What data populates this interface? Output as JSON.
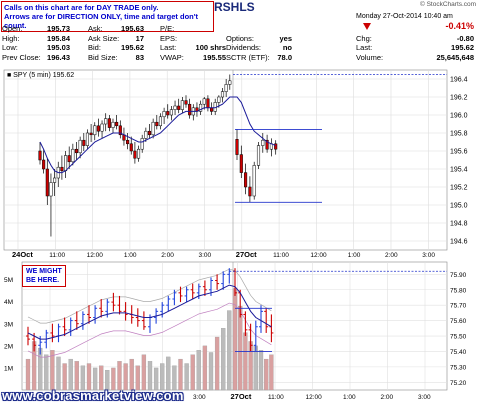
{
  "notes": {
    "line1": "Calls on this chart are for DAY TRADE only.",
    "line2": "Arrows are for DIRECTION ONLY, time and target don't count."
  },
  "header": {
    "symbol": "RSHLS",
    "date": "Monday 27-Oct-2014 10:40 am",
    "logo": "© StockCharts.com",
    "change_pct": "-0.41%",
    "rows": [
      {
        "label": "Open:",
        "value": "195.73",
        "label2": "Ask:",
        "value2": "195.63",
        "label3": "P/E:",
        "value3": ""
      },
      {
        "label": "High:",
        "value": "195.84",
        "label2": "Ask Size:",
        "value2": "17",
        "label3": "EPS:",
        "value3": ""
      },
      {
        "label": "Low:",
        "value": "195.03",
        "label2": "Bid:",
        "value2": "195.62",
        "label3": "Last:",
        "value3": "100 shrs"
      },
      {
        "label": "Prev Close:",
        "value": "196.43",
        "label2": "Bid Size:",
        "value2": "83",
        "label3": "VWAP:",
        "value3": "195.55"
      }
    ],
    "mid_rows": [
      {
        "label": "Options:",
        "value": "yes"
      },
      {
        "label": "Dividends:",
        "value": "no"
      },
      {
        "label": "SCTR (ETF):",
        "value": "78.0"
      }
    ],
    "right_rows": [
      {
        "label": "Chg:",
        "value": "-0.80"
      },
      {
        "label": "Last:",
        "value": "195.62"
      },
      {
        "label": "Volume:",
        "value": "25,645,648"
      }
    ]
  },
  "legend": "SPY (5 min) 195.62",
  "annotation": {
    "line1": "WE MIGHT",
    "line2": "BE HERE."
  },
  "watermark": "www.cobrasmarketview.com",
  "colors": {
    "up": "#008800",
    "down": "#cc0000",
    "ma": "#1a1a99",
    "guide": "#2233cc",
    "wave": "#2244dd"
  },
  "chart_data": [
    {
      "type": "candlestick",
      "title": "SPY (5 min) 195.62",
      "y_ticks": [
        194.6,
        194.8,
        195.0,
        195.2,
        195.4,
        195.6,
        195.8,
        196.0,
        196.2,
        196.4
      ],
      "ylim": [
        194.5,
        196.5
      ],
      "x_ticks": [
        "24Oct",
        "11:00",
        "12:00",
        "1:00",
        "2:00",
        "3:00",
        "27Oct",
        "11:00",
        "12:00",
        "1:00",
        "2:00",
        "3:00"
      ],
      "ohlc": [
        [
          195.6,
          195.7,
          195.45,
          195.5
        ],
        [
          195.5,
          195.62,
          195.35,
          195.4
        ],
        [
          195.4,
          195.52,
          195.0,
          195.1
        ],
        [
          195.1,
          195.35,
          194.65,
          195.25
        ],
        [
          195.25,
          195.4,
          195.1,
          195.3
        ],
        [
          195.3,
          195.48,
          195.2,
          195.42
        ],
        [
          195.42,
          195.55,
          195.28,
          195.38
        ],
        [
          195.38,
          195.6,
          195.3,
          195.55
        ],
        [
          195.55,
          195.65,
          195.4,
          195.48
        ],
        [
          195.48,
          195.68,
          195.44,
          195.62
        ],
        [
          195.62,
          195.7,
          195.5,
          195.58
        ],
        [
          195.58,
          195.76,
          195.52,
          195.72
        ],
        [
          195.72,
          195.8,
          195.6,
          195.66
        ],
        [
          195.66,
          195.84,
          195.62,
          195.8
        ],
        [
          195.8,
          195.9,
          195.7,
          195.78
        ],
        [
          195.78,
          195.92,
          195.72,
          195.88
        ],
        [
          195.88,
          195.96,
          195.76,
          195.82
        ],
        [
          195.82,
          195.94,
          195.74,
          195.9
        ],
        [
          195.9,
          196.02,
          195.82,
          195.96
        ],
        [
          195.96,
          196.0,
          195.82,
          195.86
        ],
        [
          195.86,
          195.96,
          195.8,
          195.92
        ],
        [
          195.92,
          196.0,
          195.84,
          195.88
        ],
        [
          195.88,
          195.94,
          195.74,
          195.78
        ],
        [
          195.78,
          195.86,
          195.66,
          195.72
        ],
        [
          195.72,
          195.8,
          195.62,
          195.68
        ],
        [
          195.68,
          195.76,
          195.56,
          195.6
        ],
        [
          195.6,
          195.7,
          195.46,
          195.52
        ],
        [
          195.52,
          195.66,
          195.48,
          195.62
        ],
        [
          195.62,
          195.78,
          195.58,
          195.74
        ],
        [
          195.74,
          195.86,
          195.7,
          195.82
        ],
        [
          195.82,
          195.9,
          195.74,
          195.78
        ],
        [
          195.78,
          195.96,
          195.74,
          195.92
        ],
        [
          195.92,
          196.0,
          195.84,
          195.88
        ],
        [
          195.88,
          196.02,
          195.84,
          195.98
        ],
        [
          195.98,
          196.08,
          195.9,
          196.04
        ],
        [
          196.04,
          196.12,
          195.96,
          196.0
        ],
        [
          196.0,
          196.1,
          195.94,
          196.06
        ],
        [
          196.06,
          196.16,
          196.0,
          196.1
        ],
        [
          196.1,
          196.18,
          196.02,
          196.06
        ],
        [
          196.06,
          196.2,
          196.02,
          196.16
        ],
        [
          196.16,
          196.22,
          196.08,
          196.12
        ],
        [
          196.12,
          196.18,
          195.96,
          196.0
        ],
        [
          196.0,
          196.12,
          195.94,
          196.08
        ],
        [
          196.08,
          196.14,
          195.98,
          196.04
        ],
        [
          196.04,
          196.16,
          196.0,
          196.12
        ],
        [
          196.12,
          196.2,
          196.06,
          196.18
        ],
        [
          196.18,
          196.22,
          196.04,
          196.08
        ],
        [
          196.08,
          196.14,
          196.0,
          196.04
        ],
        [
          196.04,
          196.18,
          196.0,
          196.14
        ],
        [
          196.14,
          196.22,
          196.08,
          196.2
        ],
        [
          196.2,
          196.3,
          196.14,
          196.26
        ],
        [
          196.26,
          196.4,
          196.2,
          196.34
        ],
        [
          196.34,
          196.45,
          196.28,
          196.38
        ],
        [
          195.73,
          195.84,
          195.5,
          195.56
        ],
        [
          195.56,
          195.66,
          195.3,
          195.36
        ],
        [
          195.36,
          195.46,
          195.12,
          195.2
        ],
        [
          195.2,
          195.32,
          195.03,
          195.1
        ],
        [
          195.1,
          195.48,
          195.06,
          195.44
        ],
        [
          195.44,
          195.7,
          195.4,
          195.66
        ],
        [
          195.66,
          195.8,
          195.58,
          195.72
        ],
        [
          195.72,
          195.78,
          195.58,
          195.62
        ],
        [
          195.62,
          195.74,
          195.54,
          195.68
        ],
        [
          195.68,
          195.72,
          195.56,
          195.62
        ]
      ],
      "ma": [
        195.7,
        195.62,
        195.52,
        195.44,
        195.38,
        195.36,
        195.36,
        195.38,
        195.42,
        195.46,
        195.5,
        195.54,
        195.58,
        195.62,
        195.66,
        195.7,
        195.72,
        195.74,
        195.76,
        195.78,
        195.8,
        195.8,
        195.8,
        195.78,
        195.76,
        195.74,
        195.72,
        195.7,
        195.7,
        195.72,
        195.74,
        195.76,
        195.78,
        195.8,
        195.84,
        195.88,
        195.92,
        195.96,
        196.0,
        196.02,
        196.04,
        196.04,
        196.04,
        196.04,
        196.06,
        196.08,
        196.08,
        196.08,
        196.08,
        196.1,
        196.12,
        196.16,
        196.2,
        196.2,
        196.14,
        196.02,
        195.9,
        195.82,
        195.78,
        195.74,
        195.7,
        195.68,
        195.66
      ],
      "guides": [
        196.45,
        195.84,
        195.03
      ]
    },
    {
      "type": "candlestick",
      "title": "",
      "y_ticks": [
        75.2,
        75.3,
        75.4,
        75.5,
        75.6,
        75.7,
        75.8,
        75.9
      ],
      "ylim": [
        75.15,
        75.98
      ],
      "volume_ticks": [
        "1M",
        "2M",
        "3M",
        "4M",
        "5M"
      ],
      "volume_max": 5.8,
      "x_ticks": [
        "11:00",
        "12:00",
        "1:00",
        "2:00",
        "3:00",
        "27Oct",
        "11:00",
        "12:00",
        "1:00",
        "2:00",
        "3:00"
      ],
      "ohlc": [
        [
          75.5,
          75.56,
          75.44,
          75.48
        ],
        [
          75.48,
          75.52,
          75.4,
          75.44
        ],
        [
          75.44,
          75.5,
          75.38,
          75.46
        ],
        [
          75.46,
          75.54,
          75.42,
          75.52
        ],
        [
          75.52,
          75.58,
          75.46,
          75.5
        ],
        [
          75.5,
          75.58,
          75.46,
          75.56
        ],
        [
          75.56,
          75.62,
          75.5,
          75.54
        ],
        [
          75.54,
          75.62,
          75.5,
          75.6
        ],
        [
          75.6,
          75.66,
          75.54,
          75.58
        ],
        [
          75.58,
          75.66,
          75.54,
          75.64
        ],
        [
          75.64,
          75.7,
          75.58,
          75.62
        ],
        [
          75.62,
          75.7,
          75.58,
          75.68
        ],
        [
          75.68,
          75.74,
          75.62,
          75.66
        ],
        [
          75.66,
          75.74,
          75.62,
          75.72
        ],
        [
          75.72,
          75.78,
          75.66,
          75.7
        ],
        [
          75.7,
          75.76,
          75.64,
          75.66
        ],
        [
          75.66,
          75.72,
          75.6,
          75.64
        ],
        [
          75.64,
          75.7,
          75.58,
          75.62
        ],
        [
          75.62,
          75.68,
          75.56,
          75.6
        ],
        [
          75.6,
          75.66,
          75.54,
          75.56
        ],
        [
          75.56,
          75.64,
          75.52,
          75.62
        ],
        [
          75.62,
          75.68,
          75.58,
          75.66
        ],
        [
          75.66,
          75.72,
          75.62,
          75.7
        ],
        [
          75.7,
          75.76,
          75.66,
          75.74
        ],
        [
          75.74,
          75.8,
          75.7,
          75.78
        ],
        [
          75.78,
          75.82,
          75.72,
          75.76
        ],
        [
          75.76,
          75.82,
          75.72,
          75.8
        ],
        [
          75.8,
          75.84,
          75.74,
          75.78
        ],
        [
          75.78,
          75.84,
          75.74,
          75.82
        ],
        [
          75.82,
          75.86,
          75.76,
          75.8
        ],
        [
          75.8,
          75.88,
          75.76,
          75.86
        ],
        [
          75.86,
          75.9,
          75.8,
          75.84
        ],
        [
          75.84,
          75.92,
          75.8,
          75.9
        ],
        [
          75.9,
          75.94,
          75.84,
          75.92
        ],
        [
          75.92,
          75.94,
          75.76,
          75.78
        ],
        [
          75.78,
          75.8,
          75.62,
          75.64
        ],
        [
          75.64,
          75.66,
          75.5,
          75.54
        ],
        [
          75.54,
          75.58,
          75.4,
          75.44
        ],
        [
          75.44,
          75.6,
          75.4,
          75.56
        ],
        [
          75.56,
          75.7,
          75.52,
          75.66
        ],
        [
          75.66,
          75.68,
          75.52,
          75.56
        ],
        [
          75.56,
          75.64,
          75.46,
          75.52
        ]
      ],
      "volume": [
        1.4,
        2.2,
        1.9,
        1.6,
        1.8,
        1.5,
        1.2,
        1.4,
        1.3,
        1.1,
        1.2,
        1.0,
        1.1,
        0.9,
        1.0,
        1.3,
        1.2,
        1.4,
        1.1,
        1.6,
        1.3,
        1.0,
        1.2,
        1.5,
        1.1,
        1.4,
        1.2,
        1.6,
        1.8,
        2.0,
        1.7,
        2.4,
        2.8,
        3.6,
        4.6,
        3.8,
        2.6,
        2.2,
        2.0,
        1.8,
        1.4,
        1.6
      ],
      "ma": [
        75.52,
        75.5,
        75.48,
        75.48,
        75.49,
        75.5,
        75.51,
        75.53,
        75.55,
        75.57,
        75.59,
        75.61,
        75.63,
        75.64,
        75.65,
        75.65,
        75.65,
        75.64,
        75.63,
        75.62,
        75.62,
        75.63,
        75.64,
        75.66,
        75.68,
        75.7,
        75.72,
        75.74,
        75.76,
        75.77,
        75.78,
        75.79,
        75.81,
        75.83,
        75.82,
        75.78,
        75.72,
        75.66,
        75.62,
        75.6,
        75.58,
        75.56
      ],
      "guides": [
        75.92,
        75.68,
        75.4
      ]
    }
  ]
}
